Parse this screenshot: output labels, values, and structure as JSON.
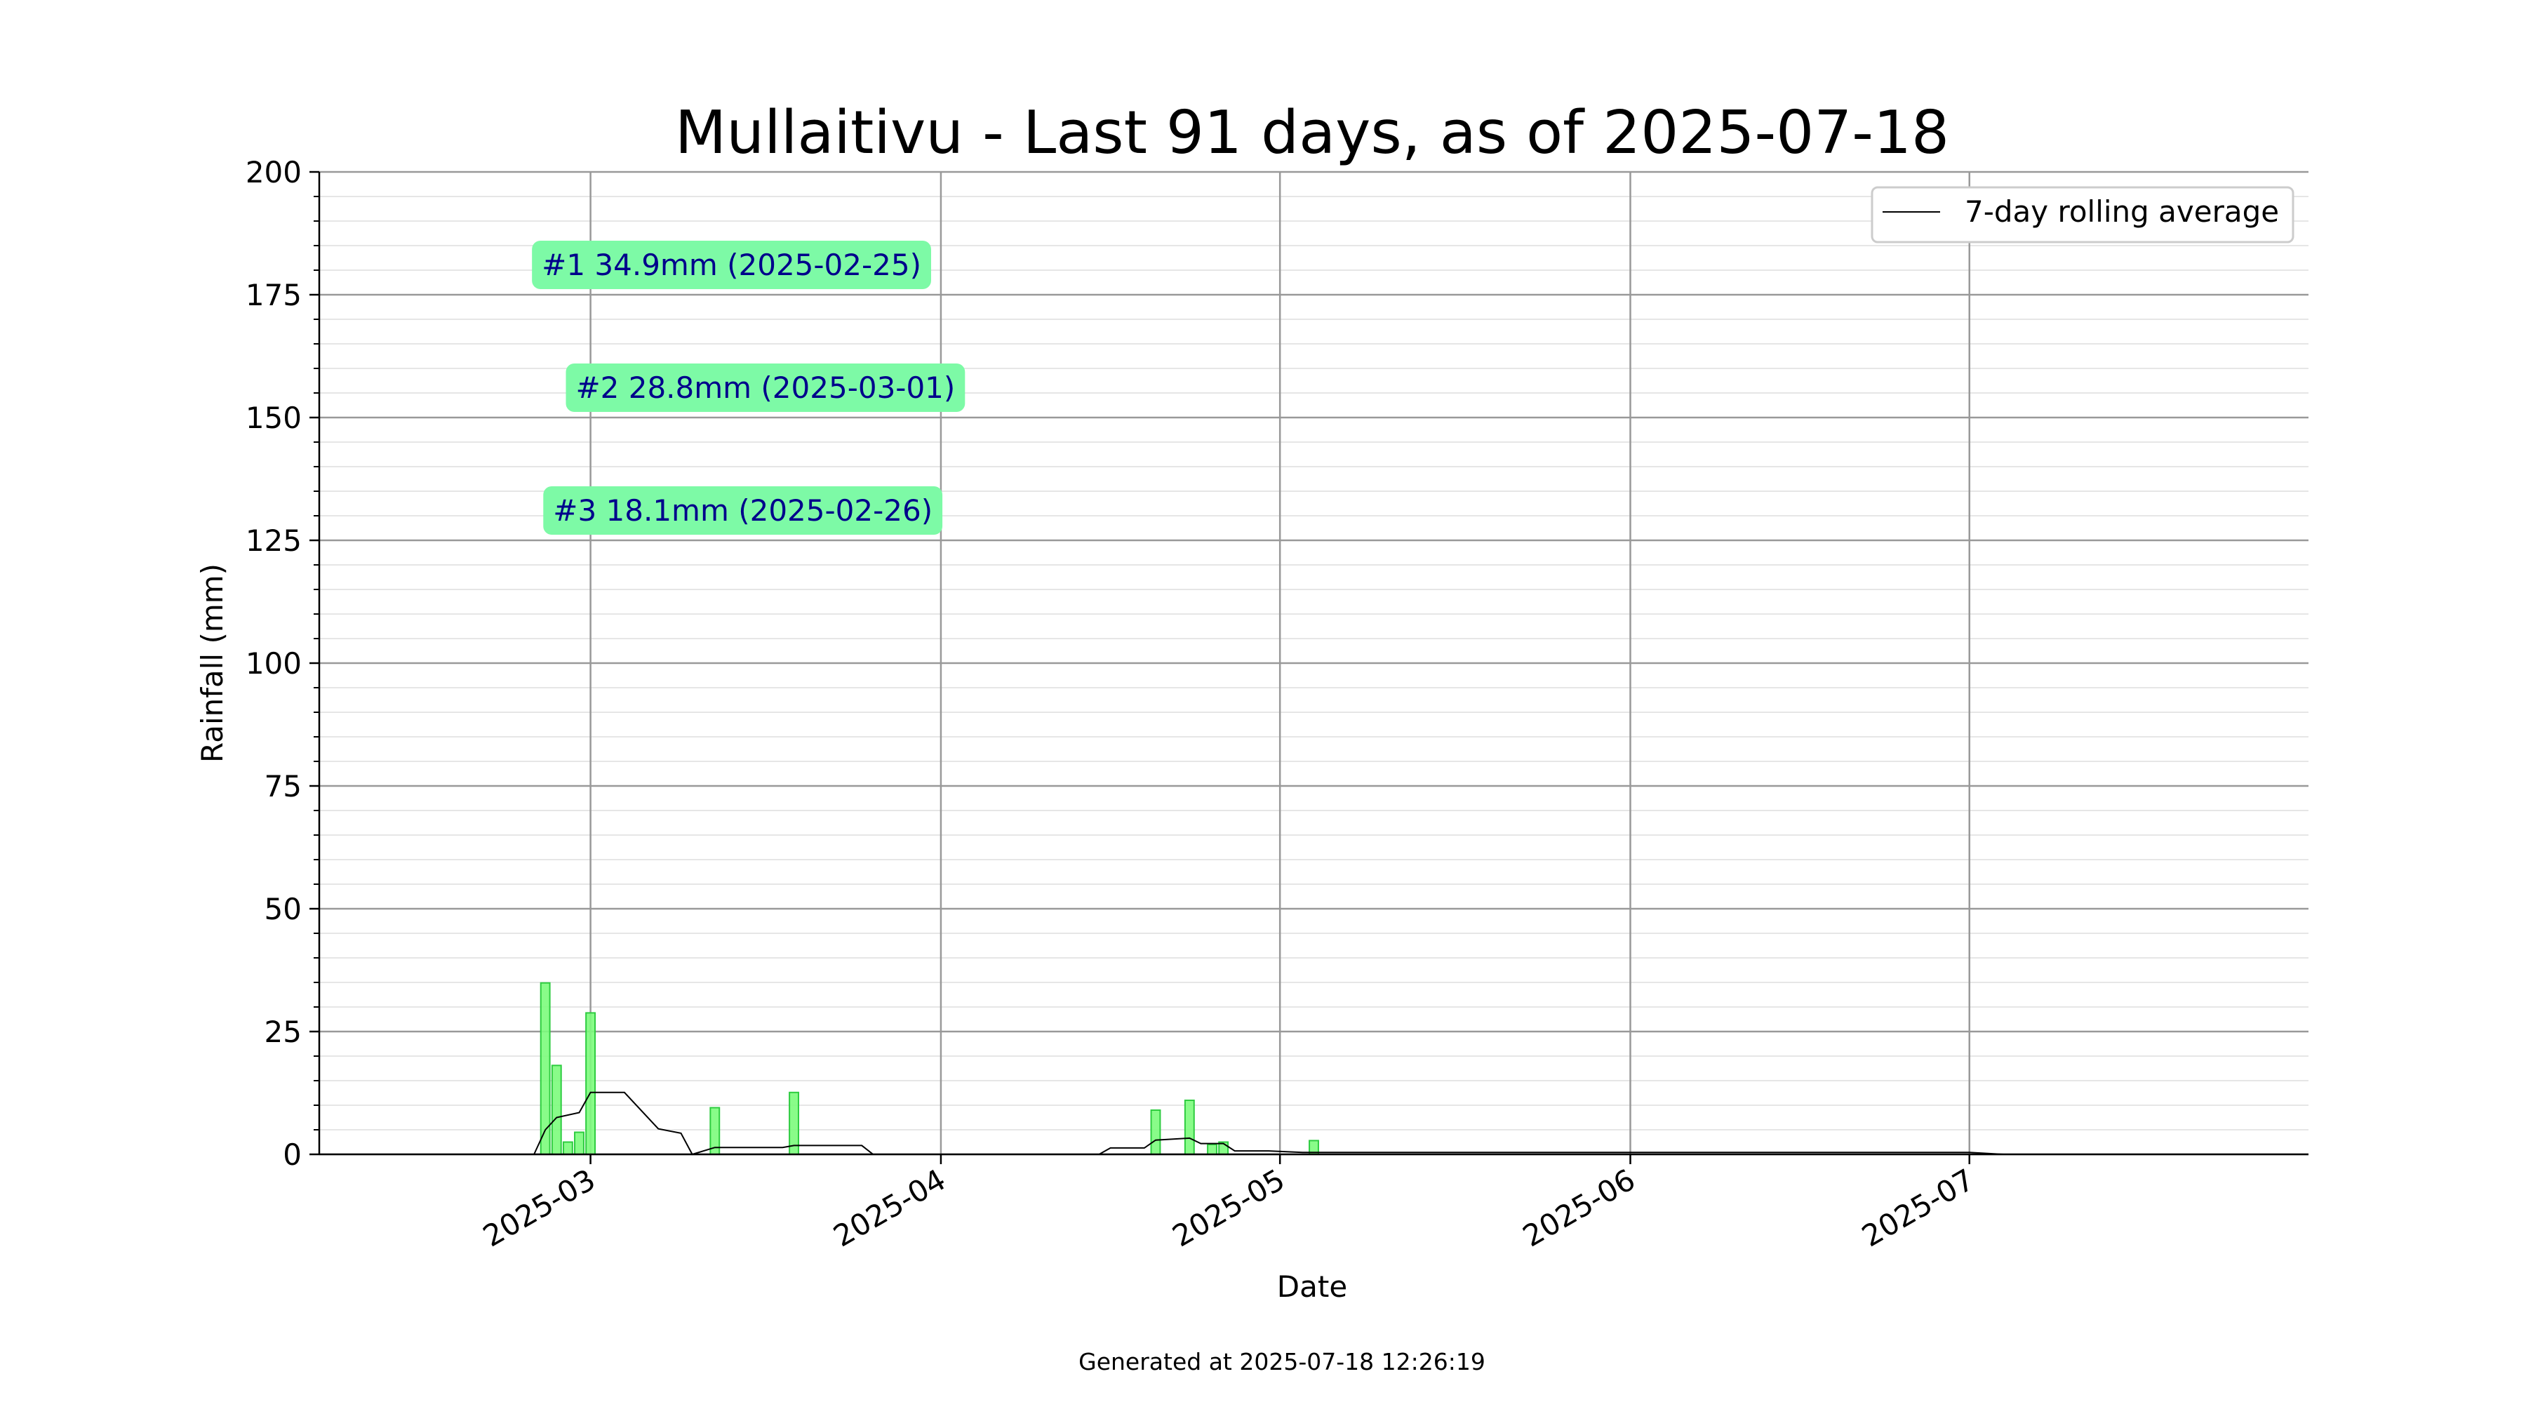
{
  "chart_data": {
    "type": "bar",
    "title": "Mullaitivu - Last 91 days, as of 2025-07-18",
    "xlabel": "Date",
    "ylabel": "Rainfall (mm)",
    "footer": "Generated at 2025-07-18 12:26:19",
    "ylim": [
      0,
      200
    ],
    "xlim": [
      "2025-02-05",
      "2025-07-31"
    ],
    "yticks": [
      0,
      25,
      50,
      75,
      100,
      125,
      150,
      175,
      200
    ],
    "y_minor_step": 5,
    "xticks": [
      "2025-03-01",
      "2025-04-01",
      "2025-05-01",
      "2025-06-01",
      "2025-07-01"
    ],
    "xtick_labels": [
      "2025-03",
      "2025-04",
      "2025-05",
      "2025-06",
      "2025-07"
    ],
    "grid": true,
    "legend_position": "top-right",
    "colors": {
      "bar_fill": "#7cfc7c",
      "bar_edge": "#2ecc40",
      "line": "#000000",
      "annotation_bg": "#7dfaa6",
      "annotation_text": "#00008b"
    },
    "series": [
      {
        "type": "bar",
        "x": [
          "2025-02-13",
          "2025-02-14",
          "2025-02-15",
          "2025-02-16",
          "2025-02-17",
          "2025-02-18",
          "2025-02-19",
          "2025-02-20",
          "2025-02-21",
          "2025-02-22",
          "2025-02-23",
          "2025-02-24",
          "2025-02-25",
          "2025-02-26",
          "2025-02-27",
          "2025-02-28",
          "2025-03-01",
          "2025-03-02",
          "2025-03-03",
          "2025-03-04",
          "2025-03-05",
          "2025-03-06",
          "2025-03-07",
          "2025-03-08",
          "2025-03-09",
          "2025-03-10",
          "2025-03-11",
          "2025-03-12",
          "2025-03-13",
          "2025-03-14",
          "2025-03-15",
          "2025-03-16",
          "2025-03-17",
          "2025-03-18",
          "2025-03-19",
          "2025-03-20",
          "2025-03-21",
          "2025-03-22",
          "2025-03-23",
          "2025-03-24",
          "2025-03-25",
          "2025-03-26",
          "2025-04-15",
          "2025-04-16",
          "2025-04-17",
          "2025-04-18",
          "2025-04-19",
          "2025-04-20",
          "2025-04-21",
          "2025-04-22",
          "2025-04-23",
          "2025-04-24",
          "2025-04-25",
          "2025-04-26",
          "2025-04-27",
          "2025-04-28",
          "2025-04-29",
          "2025-04-30",
          "2025-05-01",
          "2025-05-02",
          "2025-05-03",
          "2025-05-04"
        ],
        "values": [
          0,
          0,
          0,
          0,
          0,
          0,
          0,
          0,
          0,
          0,
          0,
          0,
          34.9,
          18.1,
          2.5,
          4.5,
          28.8,
          0,
          0,
          0,
          0,
          0,
          0,
          0,
          0,
          0,
          0,
          9.5,
          0,
          0,
          0,
          0,
          0,
          0,
          12.6,
          0,
          0,
          0,
          0,
          0,
          0,
          0,
          0,
          0,
          0,
          0,
          0,
          9.0,
          0,
          0,
          11.0,
          0,
          2.0,
          2.5,
          0,
          0,
          0,
          0,
          0,
          0,
          0,
          2.8
        ]
      },
      {
        "type": "line",
        "name": "7-day rolling average",
        "points": [
          [
            "2025-02-21",
            0
          ],
          [
            "2025-02-24",
            0
          ],
          [
            "2025-02-25",
            5
          ],
          [
            "2025-02-26",
            7.5
          ],
          [
            "2025-02-28",
            8.5
          ],
          [
            "2025-03-01",
            12.6
          ],
          [
            "2025-03-04",
            12.6
          ],
          [
            "2025-03-07",
            5.2
          ],
          [
            "2025-03-09",
            4.3
          ],
          [
            "2025-03-10",
            0
          ],
          [
            "2025-03-12",
            1.4
          ],
          [
            "2025-03-18",
            1.4
          ],
          [
            "2025-03-19",
            1.8
          ],
          [
            "2025-03-25",
            1.8
          ],
          [
            "2025-03-26",
            0
          ],
          [
            "2025-04-15",
            0
          ],
          [
            "2025-04-16",
            1.3
          ],
          [
            "2025-04-19",
            1.3
          ],
          [
            "2025-04-20",
            2.9
          ],
          [
            "2025-04-23",
            3.3
          ],
          [
            "2025-04-24",
            2.2
          ],
          [
            "2025-04-26",
            2.2
          ],
          [
            "2025-04-27",
            0.7
          ],
          [
            "2025-04-30",
            0.7
          ],
          [
            "2025-05-03",
            0.4
          ],
          [
            "2025-07-01",
            0.4
          ],
          [
            "2025-07-04",
            0
          ],
          [
            "2025-07-18",
            0
          ]
        ]
      }
    ],
    "annotations": [
      {
        "text": "#1 34.9mm (2025-02-25)",
        "x": "2025-02-25",
        "y": 181
      },
      {
        "text": "#2 28.8mm (2025-03-01)",
        "x": "2025-02-28",
        "y": 156
      },
      {
        "text": "#3 18.1mm (2025-02-26)",
        "x": "2025-02-26",
        "y": 131
      }
    ]
  }
}
